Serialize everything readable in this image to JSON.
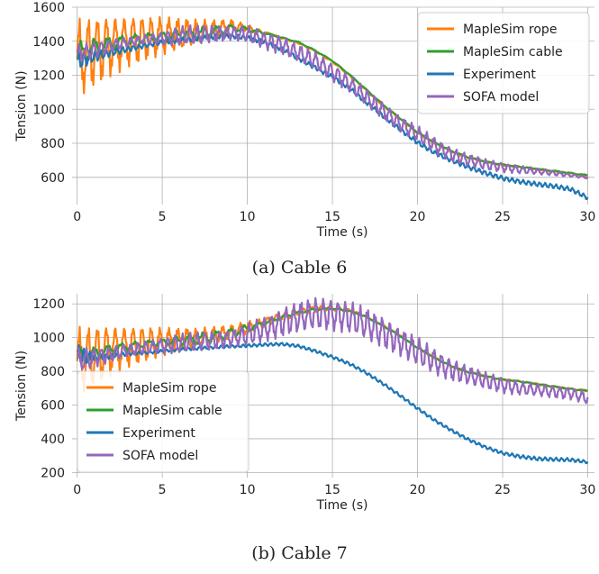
{
  "captions": [
    "(a) Cable 6",
    "(b) Cable 7"
  ],
  "colors": {
    "maplesim_rope": "#ff7f0e",
    "maplesim_cable": "#2ca02c",
    "experiment": "#1f77b4",
    "sofa_model": "#9467bd",
    "grid": "#b0b0b0"
  },
  "chart_data": [
    {
      "type": "line",
      "caption": "(a) Cable 6",
      "xlabel": "Time (s)",
      "ylabel": "Tension (N)",
      "xlim": [
        -0.3,
        30.4
      ],
      "ylim": [
        440,
        1600
      ],
      "xticks": [
        0,
        5,
        10,
        15,
        20,
        25,
        30
      ],
      "yticks": [
        600,
        800,
        1000,
        1200,
        1400,
        1600
      ],
      "grid": true,
      "legend_position": "top-right",
      "series": [
        {
          "name": "MapleSim rope",
          "color": "#ff7f0e",
          "x": [
            0,
            1,
            2,
            3,
            4,
            5,
            6,
            7,
            8,
            9,
            10,
            11,
            12,
            13,
            14,
            15,
            16,
            17,
            18,
            19,
            20,
            21,
            22,
            23,
            24,
            25,
            26,
            27,
            28,
            29,
            30
          ],
          "y": [
            1300,
            1345,
            1380,
            1405,
            1420,
            1430,
            1440,
            1450,
            1465,
            1490,
            1480,
            1450,
            1420,
            1390,
            1340,
            1280,
            1200,
            1110,
            1020,
            940,
            860,
            800,
            750,
            715,
            690,
            672,
            660,
            648,
            636,
            622,
            610
          ],
          "osc_amp": [
            250,
            220,
            190,
            160,
            140,
            120,
            100,
            80,
            60,
            40,
            20,
            10,
            5,
            5,
            5,
            5,
            5,
            5,
            5,
            5,
            5,
            5,
            5,
            5,
            5,
            5,
            5,
            5,
            5,
            5,
            5
          ]
        },
        {
          "name": "MapleSim cable",
          "color": "#2ca02c",
          "x": [
            0,
            1,
            2,
            3,
            4,
            5,
            6,
            7,
            8,
            9,
            10,
            11,
            12,
            13,
            14,
            15,
            16,
            17,
            18,
            19,
            20,
            21,
            22,
            23,
            24,
            25,
            26,
            27,
            28,
            29,
            30
          ],
          "y": [
            1320,
            1360,
            1385,
            1405,
            1420,
            1430,
            1438,
            1445,
            1458,
            1475,
            1470,
            1448,
            1422,
            1395,
            1345,
            1285,
            1205,
            1115,
            1025,
            945,
            865,
            805,
            755,
            718,
            692,
            675,
            662,
            650,
            638,
            625,
            612
          ],
          "osc_amp": [
            80,
            60,
            45,
            35,
            30,
            25,
            30,
            40,
            35,
            25,
            15,
            8,
            4,
            3,
            3,
            3,
            3,
            3,
            3,
            3,
            3,
            3,
            3,
            3,
            3,
            3,
            3,
            3,
            3,
            3,
            3
          ]
        },
        {
          "name": "Experiment",
          "color": "#1f77b4",
          "x": [
            0,
            1,
            2,
            3,
            4,
            5,
            6,
            7,
            8,
            9,
            10,
            11,
            12,
            13,
            14,
            15,
            16,
            17,
            18,
            19,
            20,
            21,
            22,
            23,
            24,
            25,
            26,
            27,
            28,
            29,
            30
          ],
          "y": [
            1280,
            1310,
            1335,
            1355,
            1375,
            1395,
            1405,
            1415,
            1425,
            1430,
            1420,
            1395,
            1355,
            1300,
            1245,
            1190,
            1125,
            1040,
            960,
            880,
            805,
            745,
            700,
            660,
            625,
            595,
            575,
            560,
            548,
            530,
            480
          ],
          "osc_amp": [
            60,
            35,
            25,
            20,
            15,
            15,
            15,
            15,
            15,
            15,
            15,
            15,
            15,
            15,
            15,
            15,
            15,
            15,
            15,
            15,
            15,
            15,
            15,
            15,
            15,
            15,
            15,
            15,
            15,
            15,
            15
          ]
        },
        {
          "name": "SOFA model",
          "color": "#9467bd",
          "x": [
            0,
            1,
            2,
            3,
            4,
            5,
            6,
            7,
            8,
            9,
            10,
            11,
            12,
            13,
            14,
            15,
            16,
            17,
            18,
            19,
            20,
            21,
            22,
            23,
            24,
            25,
            26,
            27,
            28,
            29,
            30
          ],
          "y": [
            1320,
            1350,
            1375,
            1395,
            1410,
            1420,
            1430,
            1438,
            1445,
            1450,
            1440,
            1405,
            1380,
            1330,
            1285,
            1220,
            1150,
            1070,
            990,
            915,
            855,
            790,
            735,
            700,
            675,
            660,
            645,
            635,
            625,
            612,
            600
          ],
          "osc_amp": [
            60,
            50,
            40,
            30,
            30,
            40,
            60,
            60,
            55,
            45,
            50,
            55,
            60,
            55,
            55,
            55,
            55,
            55,
            55,
            50,
            50,
            50,
            45,
            40,
            35,
            30,
            25,
            20,
            15,
            10,
            10
          ]
        }
      ]
    },
    {
      "type": "line",
      "caption": "(b) Cable 7",
      "xlabel": "Time (s)",
      "ylabel": "Tension (N)",
      "xlim": [
        -0.3,
        30.4
      ],
      "ylim": [
        170,
        1260
      ],
      "xticks": [
        0,
        5,
        10,
        15,
        20,
        25,
        30
      ],
      "yticks": [
        200,
        400,
        600,
        800,
        1000,
        1200
      ],
      "grid": true,
      "legend_position": "bottom-left",
      "series": [
        {
          "name": "MapleSim rope",
          "color": "#ff7f0e",
          "x": [
            0,
            1,
            2,
            3,
            4,
            5,
            6,
            7,
            8,
            9,
            10,
            11,
            12,
            13,
            14,
            15,
            16,
            17,
            18,
            19,
            20,
            21,
            22,
            23,
            24,
            25,
            26,
            27,
            28,
            29,
            30
          ],
          "y": [
            860,
            900,
            930,
            950,
            965,
            975,
            985,
            995,
            1010,
            1030,
            1060,
            1090,
            1125,
            1150,
            1170,
            1175,
            1160,
            1125,
            1070,
            1010,
            940,
            880,
            830,
            795,
            770,
            752,
            740,
            725,
            710,
            695,
            685
          ],
          "osc_amp": [
            220,
            190,
            160,
            130,
            110,
            90,
            75,
            60,
            55,
            45,
            40,
            30,
            25,
            20,
            20,
            15,
            10,
            5,
            5,
            5,
            5,
            5,
            5,
            5,
            5,
            5,
            5,
            5,
            5,
            5,
            5
          ]
        },
        {
          "name": "MapleSim cable",
          "color": "#2ca02c",
          "x": [
            0,
            1,
            2,
            3,
            4,
            5,
            6,
            7,
            8,
            9,
            10,
            11,
            12,
            13,
            14,
            15,
            16,
            17,
            18,
            19,
            20,
            21,
            22,
            23,
            24,
            25,
            26,
            27,
            28,
            29,
            30
          ],
          "y": [
            880,
            905,
            930,
            950,
            962,
            972,
            982,
            992,
            1005,
            1025,
            1055,
            1085,
            1120,
            1148,
            1168,
            1172,
            1158,
            1122,
            1068,
            1008,
            940,
            880,
            830,
            795,
            770,
            752,
            740,
            725,
            710,
            695,
            685
          ],
          "osc_amp": [
            60,
            40,
            30,
            25,
            20,
            20,
            30,
            40,
            35,
            30,
            25,
            15,
            10,
            8,
            5,
            4,
            3,
            3,
            3,
            3,
            3,
            3,
            3,
            3,
            3,
            3,
            3,
            3,
            3,
            3,
            3
          ]
        },
        {
          "name": "Experiment",
          "color": "#1f77b4",
          "x": [
            0,
            1,
            2,
            3,
            4,
            5,
            6,
            7,
            8,
            9,
            10,
            11,
            12,
            13,
            14,
            15,
            16,
            17,
            18,
            19,
            20,
            21,
            22,
            23,
            24,
            25,
            26,
            27,
            28,
            29,
            30
          ],
          "y": [
            900,
            880,
            890,
            905,
            910,
            920,
            930,
            935,
            942,
            948,
            952,
            958,
            962,
            950,
            920,
            885,
            845,
            790,
            725,
            655,
            580,
            510,
            450,
            395,
            350,
            315,
            295,
            282,
            278,
            275,
            262
          ],
          "osc_amp": [
            70,
            25,
            15,
            12,
            10,
            10,
            10,
            10,
            10,
            10,
            10,
            10,
            10,
            10,
            10,
            10,
            10,
            10,
            10,
            10,
            10,
            10,
            10,
            10,
            10,
            10,
            12,
            12,
            12,
            12,
            10
          ]
        },
        {
          "name": "SOFA model",
          "color": "#9467bd",
          "x": [
            0,
            1,
            2,
            3,
            4,
            5,
            6,
            7,
            8,
            9,
            10,
            11,
            12,
            13,
            14,
            15,
            16,
            17,
            18,
            19,
            20,
            21,
            22,
            23,
            24,
            25,
            26,
            27,
            28,
            29,
            30
          ],
          "y": [
            860,
            880,
            905,
            925,
            940,
            955,
            965,
            975,
            985,
            995,
            1015,
            1050,
            1090,
            1120,
            1140,
            1140,
            1120,
            1080,
            1030,
            975,
            915,
            860,
            810,
            775,
            745,
            720,
            700,
            690,
            680,
            670,
            640
          ],
          "osc_amp": [
            80,
            60,
            50,
            40,
            40,
            50,
            60,
            60,
            60,
            55,
            70,
            80,
            90,
            100,
            100,
            100,
            100,
            100,
            100,
            90,
            90,
            80,
            70,
            60,
            55,
            50,
            45,
            40,
            40,
            40,
            40
          ]
        }
      ]
    }
  ]
}
